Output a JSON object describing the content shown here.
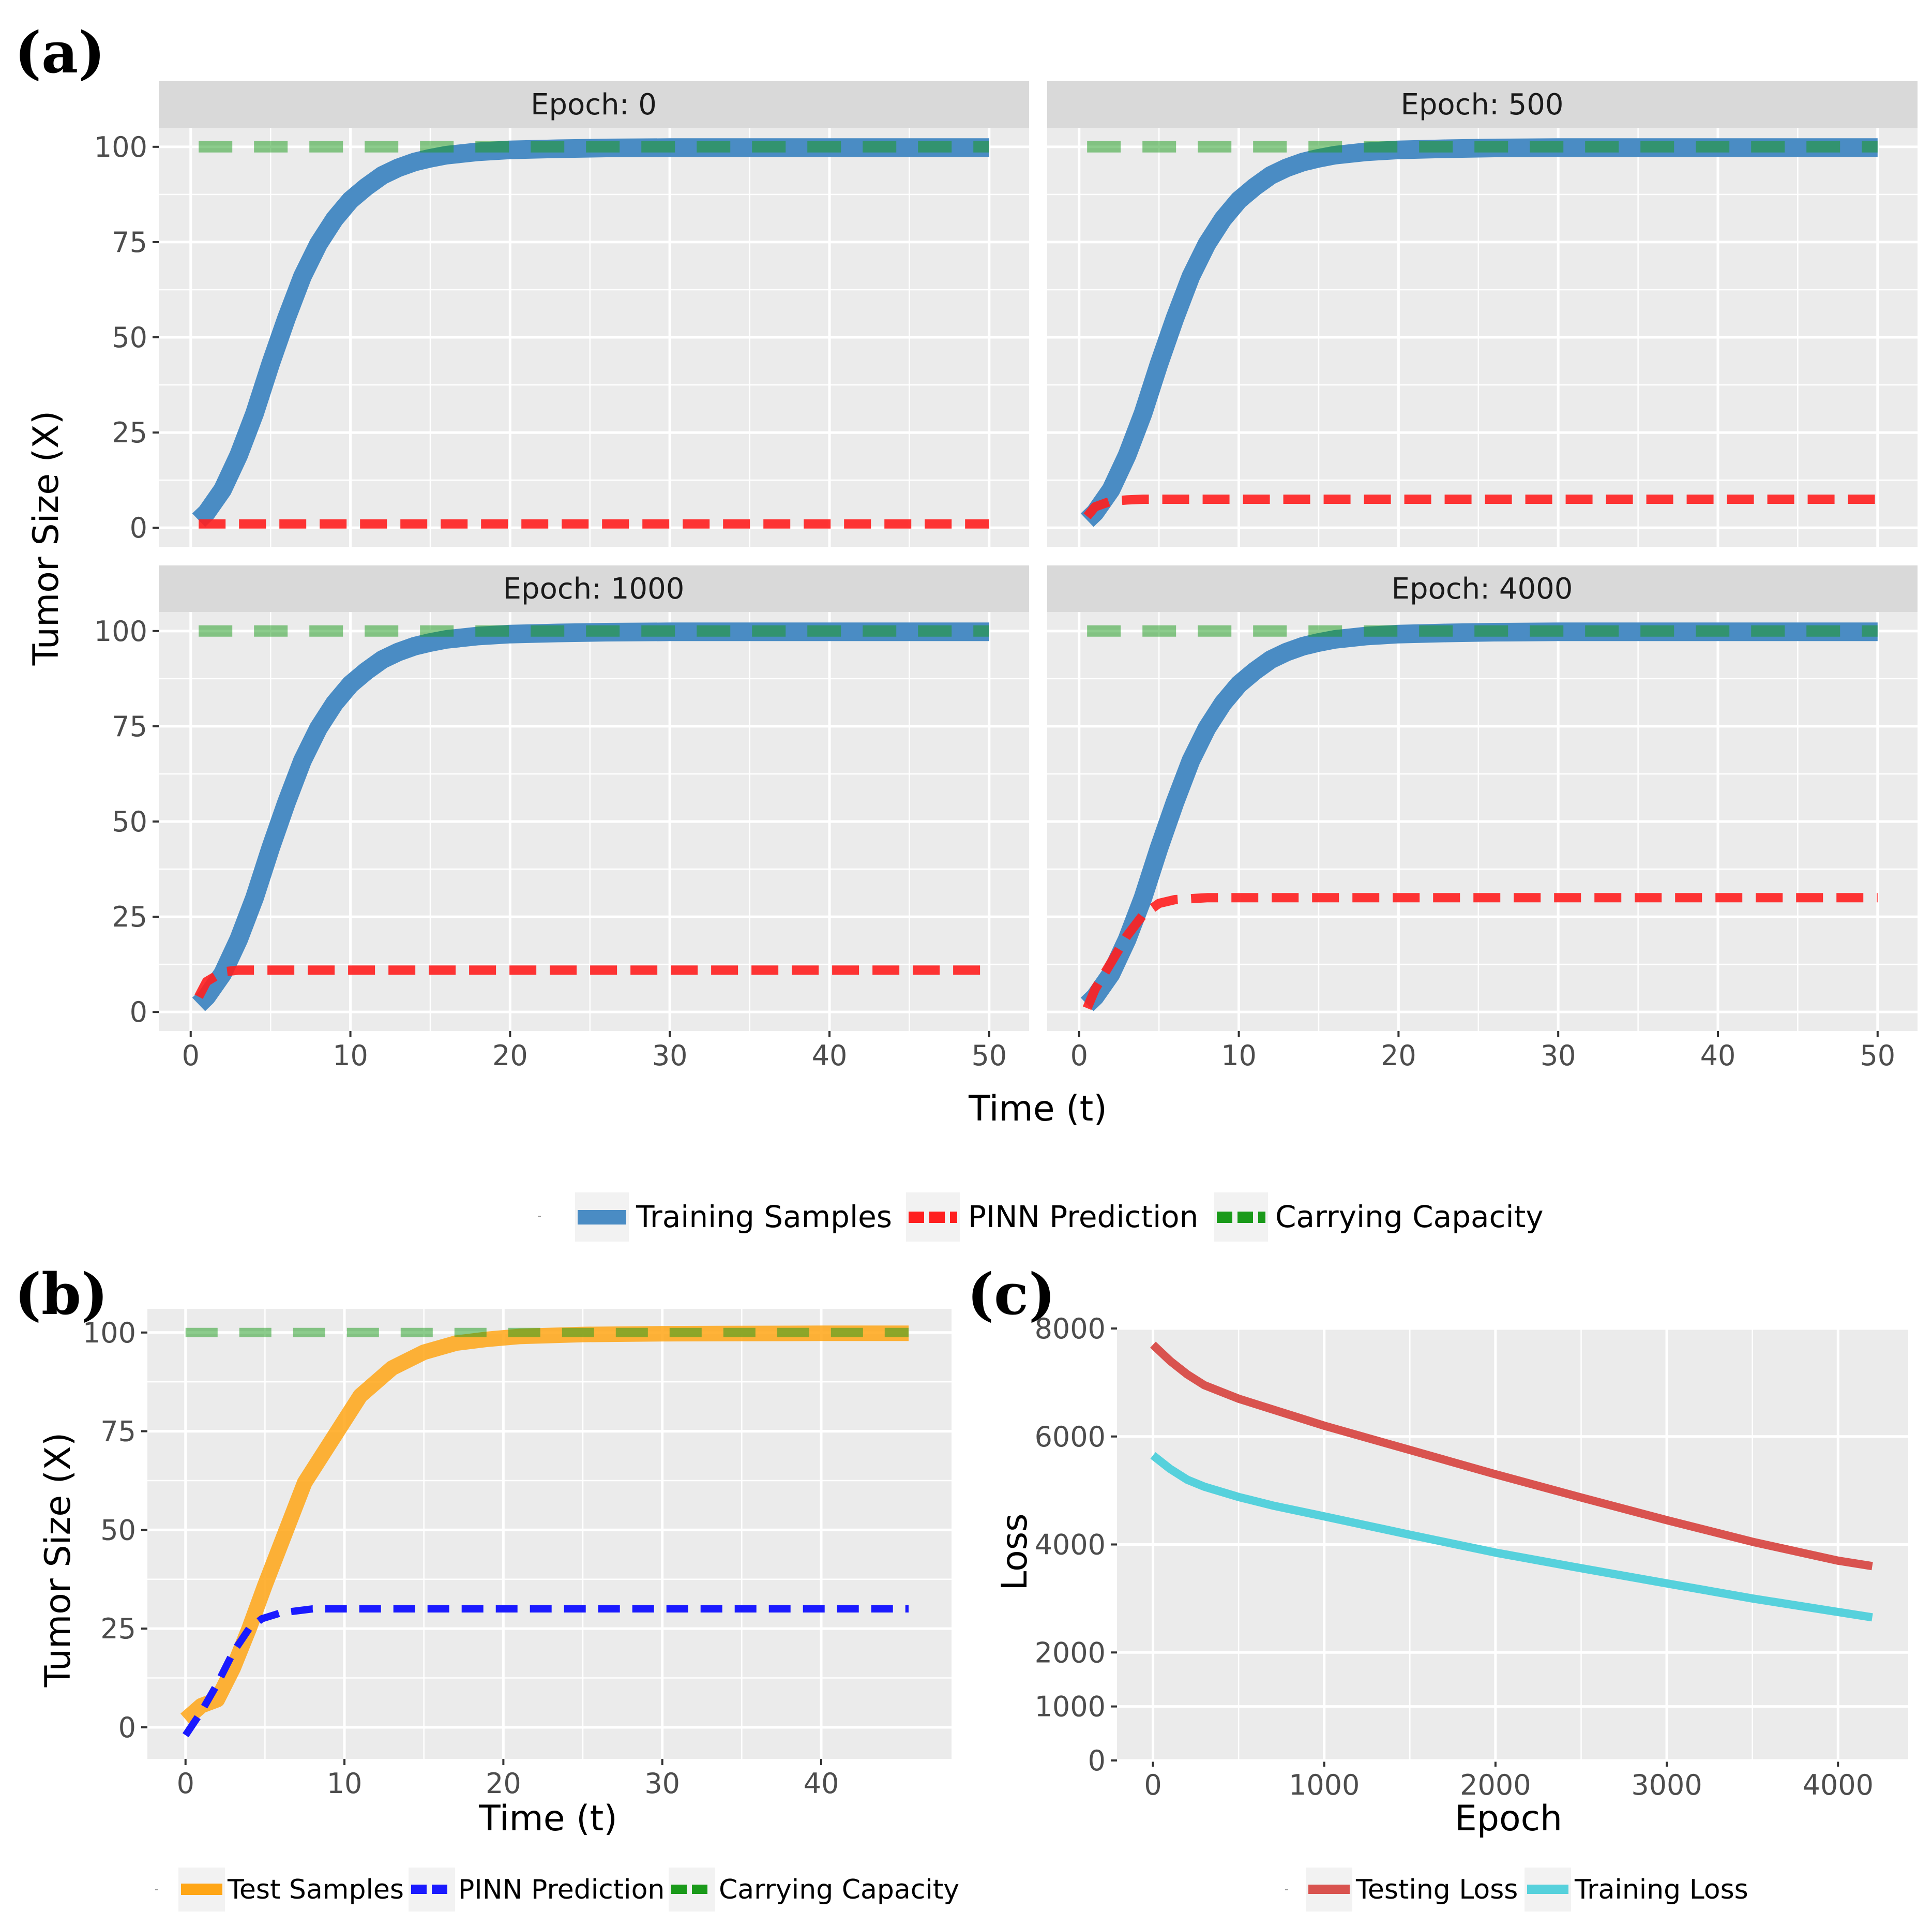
{
  "panel_labels": [
    "(a)",
    "(b)",
    "(c)"
  ],
  "colors": {
    "panel_bg": "#ebebeb",
    "grid": "#ffffff",
    "strip_bg": "#d9d9d9",
    "training": "#4a8cc4",
    "pinn_a": "#ff1f1f",
    "capacity": "#1a9a1a",
    "test": "#ffa616",
    "pinn_b": "#1a1aff",
    "testing_loss": "#d9534f",
    "training_loss": "#56d1dc"
  },
  "chart_data": [
    {
      "id": "a",
      "type": "line",
      "xlabel": "Time (t)",
      "ylabel": "Tumor Size (X)",
      "xlim": [
        -2,
        52.5
      ],
      "ylim": [
        -5,
        105
      ],
      "xticks": [
        0,
        10,
        20,
        30,
        40,
        50
      ],
      "yticks": [
        0,
        25,
        50,
        75,
        100
      ],
      "facets": [
        {
          "title": "Epoch: 0",
          "pinn": {
            "x": [
              0.5,
              50
            ],
            "y": [
              1,
              1
            ]
          }
        },
        {
          "title": "Epoch: 500",
          "pinn": {
            "x": [
              0.5,
              1,
              2,
              3,
              4,
              50
            ],
            "y": [
              3,
              5.5,
              7,
              7.3,
              7.5,
              7.5
            ]
          }
        },
        {
          "title": "Epoch: 1000",
          "pinn": {
            "x": [
              0.5,
              1,
              2,
              3,
              4,
              50
            ],
            "y": [
              4,
              8,
              10.5,
              11,
              11,
              11
            ]
          }
        },
        {
          "title": "Epoch: 4000",
          "pinn": {
            "x": [
              0.5,
              1,
              2,
              3,
              4,
              5,
              6,
              8,
              50
            ],
            "y": [
              1,
              6,
              13,
              20,
              25.5,
              28.5,
              29.5,
              30,
              30
            ]
          }
        }
      ],
      "training": {
        "x": [
          0.5,
          1,
          2,
          3,
          4,
          5,
          6,
          7,
          8,
          9,
          10,
          11,
          12,
          13,
          14,
          15,
          16,
          18,
          20,
          23,
          26,
          30,
          40,
          50
        ],
        "y": [
          2,
          4,
          10,
          19,
          30,
          43,
          55,
          66,
          74.5,
          81,
          86,
          89.5,
          92.5,
          94.5,
          96,
          97,
          97.8,
          98.7,
          99.2,
          99.5,
          99.7,
          99.8,
          99.8,
          99.8
        ]
      },
      "capacity": {
        "x": [
          0.5,
          50
        ],
        "y": [
          100,
          100
        ]
      },
      "legend": [
        "Training Samples",
        "PINN Prediction",
        "Carrying Capacity"
      ]
    },
    {
      "id": "b",
      "type": "line",
      "xlabel": "Time (t)",
      "ylabel": "Tumor Size (X)",
      "xlim": [
        -2.4,
        48.2
      ],
      "ylim": [
        -8,
        106
      ],
      "xticks": [
        0,
        10,
        20,
        30,
        40
      ],
      "yticks": [
        0,
        25,
        50,
        75,
        100
      ],
      "series": [
        {
          "name": "Test Samples",
          "x": [
            0,
            1,
            2,
            3,
            4,
            5,
            7.5,
            11,
            13,
            15,
            17,
            19,
            21,
            25,
            30,
            40,
            45.5
          ],
          "y": [
            2,
            5.5,
            7,
            15,
            25,
            36,
            62,
            84,
            91,
            95,
            97.3,
            98.3,
            99,
            99.5,
            99.7,
            99.8,
            99.8
          ]
        },
        {
          "name": "PINN Prediction",
          "x": [
            0,
            1,
            2,
            3,
            4,
            4.8,
            6,
            8,
            45.5
          ],
          "y": [
            -2,
            4,
            11,
            19,
            25,
            27.5,
            29,
            30,
            30
          ]
        },
        {
          "name": "Carrying Capacity",
          "x": [
            0,
            45.5
          ],
          "y": [
            100,
            100
          ]
        }
      ],
      "legend": [
        "Test Samples",
        "PINN Prediction",
        "Carrying Capacity"
      ]
    },
    {
      "id": "c",
      "type": "line",
      "xlabel": "Epoch",
      "ylabel": "Loss",
      "xlim": [
        -210,
        4410
      ],
      "ylim": [
        0,
        8000
      ],
      "xticks": [
        0,
        1000,
        2000,
        3000,
        4000
      ],
      "yticks": [
        0,
        1000,
        2000,
        4000,
        6000,
        8000
      ],
      "series": [
        {
          "name": "Testing Loss",
          "x": [
            0,
            100,
            200,
            300,
            500,
            700,
            1000,
            1500,
            2000,
            2500,
            3000,
            3500,
            4000,
            4200
          ],
          "y": [
            7700,
            7400,
            7150,
            6950,
            6700,
            6500,
            6200,
            5750,
            5300,
            4870,
            4450,
            4050,
            3700,
            3600
          ]
        },
        {
          "name": "Training Loss",
          "x": [
            0,
            100,
            200,
            300,
            500,
            700,
            1000,
            1500,
            2000,
            2500,
            3000,
            3500,
            4000,
            4200
          ],
          "y": [
            5650,
            5400,
            5200,
            5070,
            4880,
            4720,
            4520,
            4180,
            3850,
            3560,
            3280,
            3000,
            2750,
            2650
          ]
        }
      ],
      "legend": [
        "Testing Loss",
        "Training Loss"
      ]
    }
  ]
}
